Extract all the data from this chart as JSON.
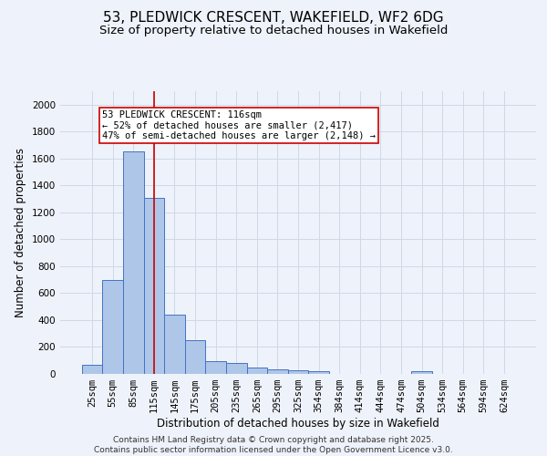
{
  "title": "53, PLEDWICK CRESCENT, WAKEFIELD, WF2 6DG",
  "subtitle": "Size of property relative to detached houses in Wakefield",
  "xlabel": "Distribution of detached houses by size in Wakefield",
  "ylabel": "Number of detached properties",
  "categories": [
    "25sqm",
    "55sqm",
    "85sqm",
    "115sqm",
    "145sqm",
    "175sqm",
    "205sqm",
    "235sqm",
    "265sqm",
    "295sqm",
    "325sqm",
    "354sqm",
    "384sqm",
    "414sqm",
    "444sqm",
    "474sqm",
    "504sqm",
    "534sqm",
    "564sqm",
    "594sqm",
    "624sqm"
  ],
  "values": [
    65,
    700,
    1650,
    1310,
    440,
    250,
    95,
    80,
    50,
    35,
    25,
    20,
    0,
    0,
    0,
    0,
    20,
    0,
    0,
    0,
    0
  ],
  "bar_color": "#aec6e8",
  "bar_edge_color": "#4472c4",
  "grid_color": "#d0d8e8",
  "background_color": "#eef2fa",
  "vline_x": 3,
  "vline_color": "#cc0000",
  "annotation_line1": "53 PLEDWICK CRESCENT: 116sqm",
  "annotation_line2": "← 52% of detached houses are smaller (2,417)",
  "annotation_line3": "47% of semi-detached houses are larger (2,148) →",
  "annotation_box_color": "#cc0000",
  "annotation_box_bg": "#ffffff",
  "ylim": [
    0,
    2100
  ],
  "yticks": [
    0,
    200,
    400,
    600,
    800,
    1000,
    1200,
    1400,
    1600,
    1800,
    2000
  ],
  "footer_line1": "Contains HM Land Registry data © Crown copyright and database right 2025.",
  "footer_line2": "Contains public sector information licensed under the Open Government Licence v3.0.",
  "title_fontsize": 11,
  "subtitle_fontsize": 9.5,
  "axis_label_fontsize": 8.5,
  "tick_fontsize": 7.5,
  "annotation_fontsize": 7.5,
  "footer_fontsize": 6.5
}
